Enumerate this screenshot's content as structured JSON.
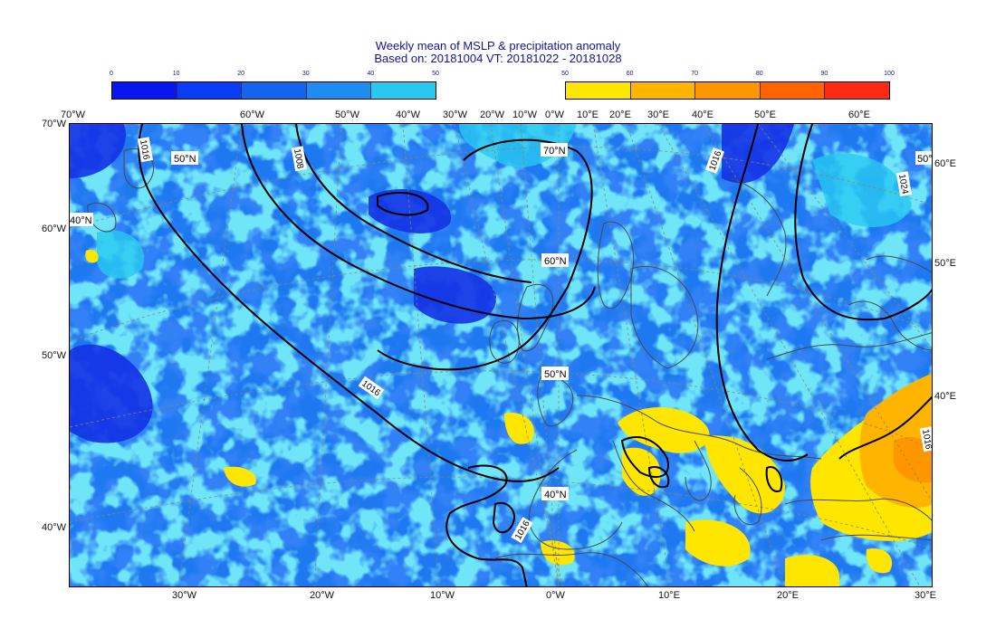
{
  "title": {
    "line1": "Weekly mean of MSLP & precipitation anomaly",
    "line2": "Based on: 20181004 VT: 20181022 - 20181028"
  },
  "colorbars": {
    "low": {
      "ticks": [
        "0",
        "10",
        "20",
        "30",
        "40",
        "50"
      ],
      "colors": [
        "#0a16f0",
        "#0a3cf5",
        "#1464f0",
        "#1e8cf0",
        "#28c8f0"
      ]
    },
    "high": {
      "ticks": [
        "50",
        "60",
        "70",
        "80",
        "90",
        "100"
      ],
      "colors": [
        "#ffe600",
        "#ffb400",
        "#ff9600",
        "#ff6400",
        "#ff2a14"
      ]
    }
  },
  "axes": {
    "top": [
      "70°W",
      "60°W",
      "50°W",
      "40°W",
      "30°W",
      "20°W",
      "10°W",
      "0°W",
      "10°E",
      "20°E",
      "30°E",
      "40°E",
      "50°E",
      "60°E"
    ],
    "bottom": [
      "30°W",
      "20°W",
      "10°W",
      "0°W",
      "10°E",
      "20°E",
      "30°E"
    ],
    "left": [
      "70°W",
      "60°W",
      "50°W",
      "40°W"
    ],
    "right": [
      "60°E",
      "50°E",
      "40°E"
    ]
  },
  "map": {
    "lat_labels": [
      "70°N",
      "60°N",
      "50°N",
      "40°N"
    ],
    "edge_lat_labels": [
      "50°N",
      "40°N",
      "50°N"
    ],
    "isobar_labels": [
      "1016",
      "1008",
      "1016",
      "1016",
      "1016",
      "1024",
      "1016"
    ],
    "field_colors": {
      "dark_blue": "#1432e6",
      "mid_blue": "#1e78f0",
      "light_blue": "#28c8f0",
      "yellow": "#ffe600",
      "orange": "#ffb400",
      "deep_orange": "#ff9600"
    }
  }
}
